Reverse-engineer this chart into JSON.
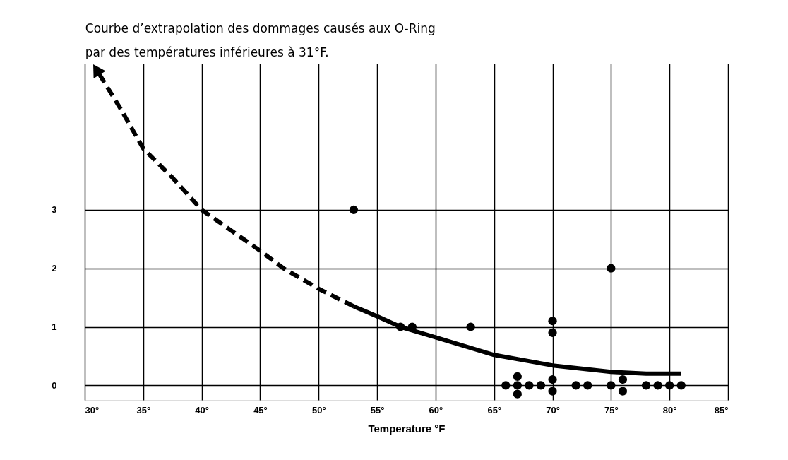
{
  "chart_data": {
    "type": "scatter",
    "title": [
      "Courbe d’extrapolation des dommages causés aux O-Ring",
      "par des températures inférieures à 31°F."
    ],
    "xlabel": "Temperature °F",
    "xlim": [
      30,
      85
    ],
    "ylim": [
      -0.25,
      5.5
    ],
    "xticks": [
      {
        "value": 30,
        "label": "30°"
      },
      {
        "value": 35,
        "label": "35°"
      },
      {
        "value": 40,
        "label": "40°"
      },
      {
        "value": 45,
        "label": "45°"
      },
      {
        "value": 50,
        "label": "50°"
      },
      {
        "value": 55,
        "label": "55°"
      },
      {
        "value": 60,
        "label": "60°"
      },
      {
        "value": 65,
        "label": "65°"
      },
      {
        "value": 70,
        "label": "70°"
      },
      {
        "value": 75,
        "label": "75°"
      },
      {
        "value": 80,
        "label": "80°"
      },
      {
        "value": 85,
        "label": "85°"
      }
    ],
    "yticks": [
      0,
      1,
      2,
      3
    ],
    "grid": true,
    "marker": "circle",
    "series": [
      {
        "color": "#000000",
        "x": [
          53,
          57,
          58,
          63,
          66,
          67,
          67,
          67,
          68,
          69,
          70,
          70,
          70,
          70,
          72,
          73,
          75,
          75,
          76,
          76,
          78,
          79,
          80,
          81
        ],
        "values": [
          3,
          1,
          1,
          1,
          0,
          0.15,
          0,
          -0.15,
          0,
          0,
          1.1,
          0.9,
          0.1,
          -0.1,
          0,
          0,
          0,
          2,
          0.1,
          -0.1,
          0,
          0,
          0,
          0
        ]
      },
      {
        "type": "line",
        "line_style": "dashed",
        "marker": "none",
        "color": "#000000",
        "x": [
          53,
          50,
          47,
          45,
          40,
          37.5,
          35,
          33,
          31
        ],
        "values": [
          1.35,
          1.65,
          2.0,
          2.3,
          3.0,
          3.55,
          4.05,
          4.75,
          5.4
        ]
      },
      {
        "type": "line",
        "line_style": "solid",
        "marker": "none",
        "color": "#000000",
        "x": [
          53,
          55,
          57,
          60,
          65,
          70,
          75,
          78,
          81
        ],
        "values": [
          1.35,
          1.18,
          1.0,
          0.82,
          0.52,
          0.34,
          0.23,
          0.2,
          0.2
        ]
      }
    ]
  }
}
